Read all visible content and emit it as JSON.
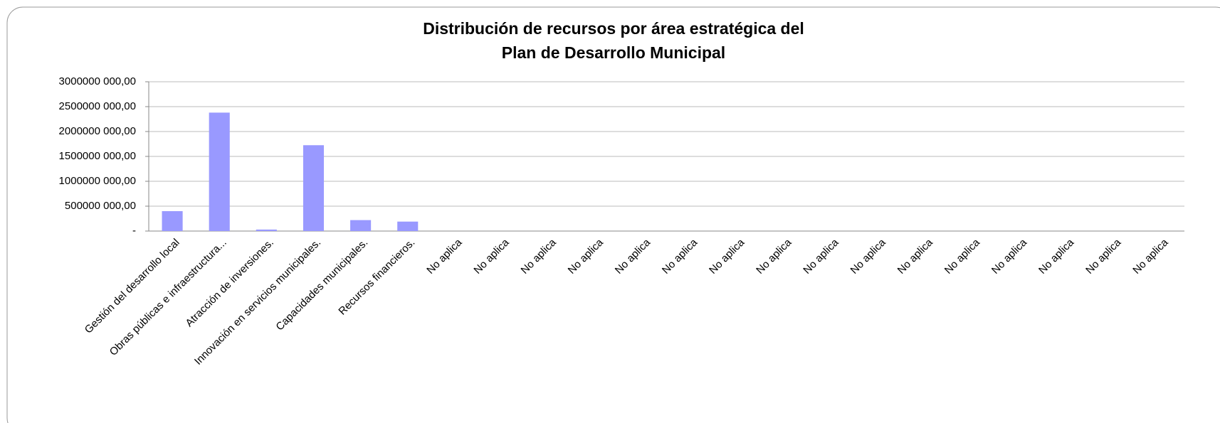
{
  "chart_data": {
    "type": "bar",
    "title": [
      "Distribución de recursos por área estratégica del",
      "Plan de Desarrollo Municipal"
    ],
    "categories": [
      "Gestión del desarrollo local",
      "Obras públicas e infraestructura...",
      "Atracción de inversiones.",
      "Innovación en servicios municipales.",
      "Capacidades municipales.",
      "Recursos financieros.",
      "No aplica",
      "No aplica",
      "No aplica",
      "No aplica",
      "No aplica",
      "No aplica",
      "No aplica",
      "No aplica",
      "No aplica",
      "No aplica",
      "No aplica",
      "No aplica",
      "No aplica",
      "No aplica",
      "No aplica",
      "No aplica"
    ],
    "values": [
      400000000,
      2380000000,
      30000000,
      1725000000,
      220000000,
      190000000,
      0,
      0,
      0,
      0,
      0,
      0,
      0,
      0,
      0,
      0,
      0,
      0,
      0,
      0,
      0,
      0
    ],
    "color": "#9999ff",
    "ylim": [
      0,
      3000000000
    ],
    "yticks": [
      {
        "value": 0,
        "label": "-"
      },
      {
        "value": 500000000,
        "label": "500000 000,00"
      },
      {
        "value": 1000000000,
        "label": "1000000 000,00"
      },
      {
        "value": 1500000000,
        "label": "1500000 000,00"
      },
      {
        "value": 2000000000,
        "label": "2000000 000,00"
      },
      {
        "value": 2500000000,
        "label": "2500000 000,00"
      },
      {
        "value": 3000000000,
        "label": "3000000 000,00"
      }
    ],
    "grid": true
  }
}
